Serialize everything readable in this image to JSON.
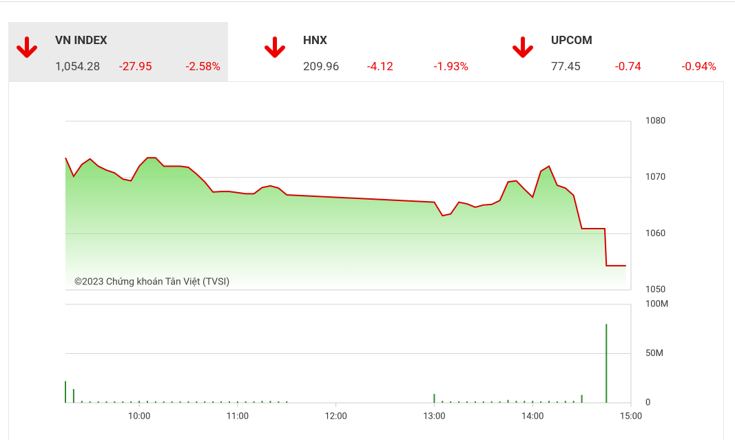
{
  "indices": [
    {
      "name": "VN INDEX",
      "value": "1,054.28",
      "change": "-27.95",
      "percent": "-2.58%"
    },
    {
      "name": "HNX",
      "value": "209.96",
      "change": "-4.12",
      "percent": "-1.93%"
    },
    {
      "name": "UPCOM",
      "value": "77.45",
      "change": "-0.74",
      "percent": "-0.94%"
    }
  ],
  "chart_data": [
    {
      "type": "area",
      "annotation": "©2023 Chứng khoán Tân Việt (TVSI)",
      "xlim": [
        "09:15",
        "15:00"
      ],
      "ylim": [
        1050,
        1080
      ],
      "yticks": [
        1050,
        1060,
        1070,
        1080
      ],
      "grid": true,
      "x": [
        "09:15",
        "09:20",
        "09:25",
        "09:30",
        "09:35",
        "09:40",
        "09:45",
        "09:50",
        "09:55",
        "10:00",
        "10:05",
        "10:10",
        "10:15",
        "10:20",
        "10:25",
        "10:30",
        "10:35",
        "10:40",
        "10:45",
        "10:50",
        "10:55",
        "11:00",
        "11:05",
        "11:10",
        "11:15",
        "11:20",
        "11:25",
        "11:30",
        "13:00",
        "13:05",
        "13:10",
        "13:15",
        "13:20",
        "13:25",
        "13:30",
        "13:35",
        "13:40",
        "13:45",
        "13:50",
        "13:55",
        "14:00",
        "14:05",
        "14:10",
        "14:15",
        "14:20",
        "14:25",
        "14:30",
        "14:44",
        "14:45",
        "14:57"
      ],
      "series": [
        {
          "color": "#d40000",
          "fill": "#8ee07a",
          "values": [
            1073.5,
            1070.2,
            1072.3,
            1073.3,
            1072,
            1071.3,
            1070.8,
            1069.7,
            1069.4,
            1072,
            1073.5,
            1073.5,
            1072,
            1072,
            1072,
            1071.8,
            1070.6,
            1069.2,
            1067.4,
            1067.5,
            1067.5,
            1067.3,
            1067.1,
            1067.1,
            1068.2,
            1068.5,
            1068.1,
            1066.9,
            1065.6,
            1063.2,
            1063.5,
            1065.6,
            1065.3,
            1064.7,
            1065.1,
            1065.2,
            1065.9,
            1069.2,
            1069.4,
            1067.9,
            1066.5,
            1071.1,
            1072,
            1068.6,
            1068.1,
            1066.8,
            1060.9,
            1060.9,
            1054.3,
            1054.3
          ]
        }
      ]
    },
    {
      "type": "bar",
      "xlim": [
        "09:15",
        "15:00"
      ],
      "ylim": [
        0,
        100
      ],
      "yticks": [
        0,
        {
          "value": 50,
          "label": "50M"
        },
        {
          "value": 100,
          "label": "100M"
        }
      ],
      "grid": true,
      "xticks": [
        "10:00",
        "11:00",
        "12:00",
        "13:00",
        "14:00",
        "15:00"
      ],
      "x": [
        "09:15",
        "09:20",
        "09:25",
        "09:30",
        "09:35",
        "09:40",
        "09:45",
        "09:50",
        "09:55",
        "10:00",
        "10:05",
        "10:10",
        "10:15",
        "10:20",
        "10:25",
        "10:30",
        "10:35",
        "10:40",
        "10:45",
        "10:50",
        "10:55",
        "11:00",
        "11:05",
        "11:10",
        "11:15",
        "11:20",
        "11:25",
        "11:30",
        "13:00",
        "13:05",
        "13:10",
        "13:15",
        "13:20",
        "13:25",
        "13:30",
        "13:35",
        "13:40",
        "13:45",
        "13:50",
        "13:55",
        "14:00",
        "14:05",
        "14:10",
        "14:15",
        "14:20",
        "14:25",
        "14:30",
        "14:45"
      ],
      "series": [
        {
          "color": "#2e8b2e",
          "values": [
            22,
            14,
            2,
            1.5,
            1.5,
            1.5,
            1.5,
            1.5,
            1.5,
            2,
            2,
            1.5,
            1.5,
            1.5,
            1.5,
            1.5,
            1.5,
            1.5,
            1.5,
            1.5,
            1.5,
            1.5,
            1.5,
            1.5,
            2,
            2,
            1.5,
            1.5,
            9,
            2,
            1.5,
            1.5,
            1.5,
            1.5,
            1.5,
            1.5,
            1.5,
            3,
            2,
            2,
            2,
            1.5,
            2,
            1.5,
            2,
            2,
            8,
            80
          ]
        }
      ]
    }
  ]
}
